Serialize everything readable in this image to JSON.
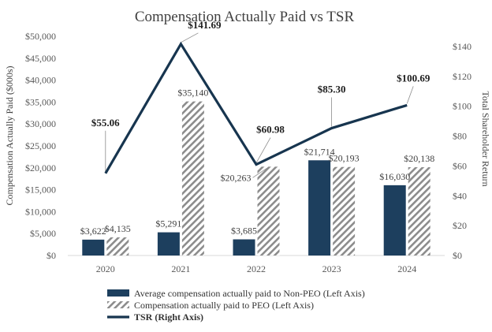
{
  "chart_data": {
    "type": "bar",
    "title": "Compensation Actually  Paid vs TSR",
    "categories": [
      "2020",
      "2021",
      "2022",
      "2023",
      "2024"
    ],
    "ylabel": "Compensation Actually Paid ($000s)",
    "y2label": "Total Shareholder Return",
    "ylim": [
      0,
      50000
    ],
    "y2lim": [
      0,
      150
    ],
    "y_ticks": [
      "$0",
      "$5,000",
      "$10,000",
      "$15,000",
      "$20,000",
      "$25,000",
      "$30,000",
      "$35,000",
      "$40,000",
      "$45,000",
      "$50,000"
    ],
    "y2_ticks": [
      "$0",
      "$20",
      "$40",
      "$60",
      "$80",
      "$100",
      "$120",
      "$140"
    ],
    "series": [
      {
        "name": "Average compensation actually paid to Non-PEO (Left Axis)",
        "kind": "bar",
        "axis": "left",
        "color": "#1d3f5e",
        "pattern": "solid",
        "values": [
          3622,
          5291,
          3685,
          21714,
          16030
        ],
        "labels": [
          "$3,622",
          "$5,291",
          "$3,685",
          "$21,714",
          "$16,030"
        ]
      },
      {
        "name": "Compensation actually paid to PEO (Left Axis)",
        "kind": "bar",
        "axis": "left",
        "color": "#8c8c8c",
        "pattern": "diagonal-hatch",
        "values": [
          4135,
          35140,
          20263,
          20193,
          20138
        ],
        "labels": [
          "$4,135",
          "$35,140",
          "$20,263",
          "$20,193",
          "$20,138"
        ]
      },
      {
        "name": "TSR (Right Axis)",
        "kind": "line",
        "axis": "right",
        "color": "#17354f",
        "values": [
          55.06,
          141.69,
          60.98,
          85.3,
          100.69
        ],
        "labels": [
          "$55.06",
          "$141.69",
          "$60.98",
          "$85.30",
          "$100.69"
        ]
      }
    ],
    "legend_position": "bottom",
    "grid": false
  }
}
